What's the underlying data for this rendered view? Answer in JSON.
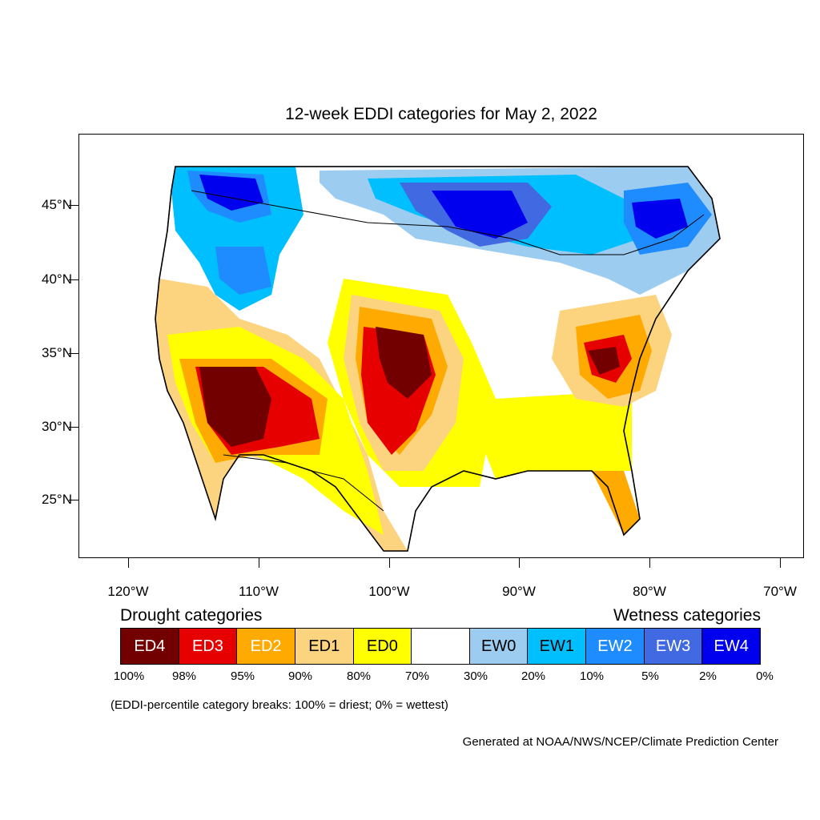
{
  "title": "12-week EDDI categories for May 2, 2022",
  "latitude_labels": [
    "45°N",
    "40°N",
    "35°N",
    "30°N",
    "25°N"
  ],
  "longitude_labels": [
    "120°W",
    "110°W",
    "100°W",
    "90°W",
    "80°W",
    "70°W"
  ],
  "legend": {
    "drought_heading": "Drought categories",
    "wetness_heading": "Wetness categories",
    "categories": [
      {
        "label": "ED4",
        "color": "#730000",
        "text_color": "#ffffff"
      },
      {
        "label": "ED3",
        "color": "#e60000",
        "text_color": "#ffffff"
      },
      {
        "label": "ED2",
        "color": "#ffaa00",
        "text_color": "#ffffff"
      },
      {
        "label": "ED1",
        "color": "#fcd37f",
        "text_color": "#000000"
      },
      {
        "label": "ED0",
        "color": "#ffff00",
        "text_color": "#000000"
      },
      {
        "label": "",
        "color": "#ffffff",
        "text_color": "#000000"
      },
      {
        "label": "EW0",
        "color": "#9ccdf0",
        "text_color": "#000000"
      },
      {
        "label": "EW1",
        "color": "#00bfff",
        "text_color": "#000000"
      },
      {
        "label": "EW2",
        "color": "#1e8cff",
        "text_color": "#ffffff"
      },
      {
        "label": "EW3",
        "color": "#4169e1",
        "text_color": "#ffffff"
      },
      {
        "label": "EW4",
        "color": "#0000ee",
        "text_color": "#ffffff"
      }
    ],
    "breaks": [
      "100%",
      "98%",
      "95%",
      "90%",
      "80%",
      "70%",
      "30%",
      "20%",
      "10%",
      "5%",
      "2%",
      "0%"
    ]
  },
  "note": "(EDDI-percentile category breaks: 100% = driest; 0% = wettest)",
  "credit": "Generated at NOAA/NWS/NCEP/Climate Prediction Center"
}
